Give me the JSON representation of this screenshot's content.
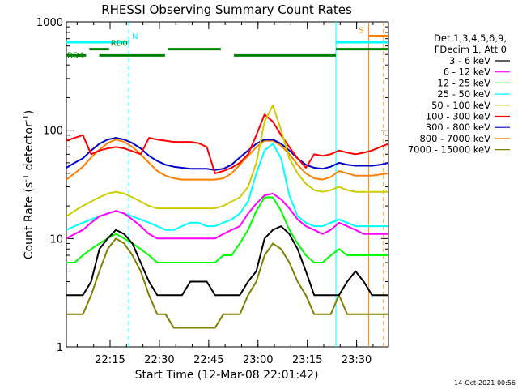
{
  "chart_data": {
    "type": "line",
    "title": "RHESSI Observing Summary Count Rates",
    "xlabel": "Start Time (12-Mar-08 22:01:42)",
    "ylabel_main": "Count Rate (s",
    "ylabel_sup1": "-1",
    "ylabel_mid": " detector",
    "ylabel_sup2": "-1",
    "ylabel_end": ")",
    "x_range_minutes": [
      0,
      98
    ],
    "y_scale": "log",
    "ylim": [
      1,
      1000
    ],
    "x_ticks": [
      {
        "label": "22:15",
        "minute": 13.3
      },
      {
        "label": "22:30",
        "minute": 28.3
      },
      {
        "label": "22:45",
        "minute": 43.3
      },
      {
        "label": "23:00",
        "minute": 58.3
      },
      {
        "label": "23:15",
        "minute": 73.3
      },
      {
        "label": "23:30",
        "minute": 88.3
      }
    ],
    "y_ticks": [
      {
        "label": "1",
        "value": 1
      },
      {
        "label": "10",
        "value": 10
      },
      {
        "label": "100",
        "value": 100
      },
      {
        "label": "1000",
        "value": 1000
      }
    ],
    "legend_header": [
      "Det 1,3,4,5,6,9,",
      "FDecim 1, Att 0"
    ],
    "series": [
      {
        "name": "3 - 6 keV",
        "color": "#000000",
        "values": [
          3,
          3,
          3,
          4,
          8,
          10,
          12,
          11,
          9,
          6,
          4,
          3,
          3,
          3,
          3,
          4,
          4,
          4,
          3,
          3,
          3,
          3,
          4,
          5,
          10,
          12,
          13,
          11,
          8,
          5,
          3,
          3,
          3,
          3,
          4,
          5,
          4,
          3,
          3,
          3
        ]
      },
      {
        "name": "6 - 12 keV",
        "color": "#ff00ff",
        "values": [
          10,
          11,
          12,
          14,
          16,
          17,
          18,
          17,
          15,
          13,
          11,
          10,
          10,
          10,
          10,
          10,
          10,
          10,
          10,
          11,
          12,
          13,
          17,
          21,
          25,
          26,
          23,
          19,
          15,
          13,
          12,
          11,
          12,
          14,
          13,
          12,
          11,
          11,
          11,
          11
        ]
      },
      {
        "name": "12 - 25 keV",
        "color": "#00ff00",
        "values": [
          6,
          6,
          7,
          8,
          9,
          10,
          11,
          10,
          9,
          8,
          7,
          6,
          6,
          6,
          6,
          6,
          6,
          6,
          6,
          7,
          7,
          9,
          12,
          18,
          24,
          24,
          18,
          12,
          9,
          7,
          6,
          6,
          7,
          8,
          7,
          7,
          7,
          7,
          7,
          7
        ]
      },
      {
        "name": "25 - 50 keV",
        "color": "#00ffff",
        "values": [
          12,
          13,
          14,
          15,
          16,
          17,
          18,
          17,
          16,
          15,
          14,
          13,
          12,
          12,
          13,
          14,
          14,
          13,
          13,
          14,
          15,
          17,
          22,
          40,
          65,
          75,
          55,
          25,
          16,
          14,
          13,
          13,
          14,
          15,
          14,
          13,
          13,
          13,
          13,
          13
        ]
      },
      {
        "name": "50 - 100 keV",
        "color": "#cccc00",
        "values": [
          16,
          18,
          20,
          22,
          24,
          26,
          27,
          26,
          24,
          22,
          20,
          19,
          19,
          19,
          19,
          19,
          19,
          19,
          19,
          20,
          22,
          24,
          30,
          50,
          120,
          170,
          100,
          55,
          40,
          32,
          28,
          27,
          28,
          30,
          28,
          27,
          27,
          27,
          27,
          27
        ]
      },
      {
        "name": "100 - 300 keV",
        "color": "#ff0000",
        "values": [
          80,
          85,
          90,
          60,
          65,
          68,
          70,
          68,
          64,
          60,
          85,
          82,
          80,
          78,
          78,
          78,
          76,
          70,
          40,
          42,
          45,
          50,
          60,
          90,
          140,
          120,
          90,
          70,
          55,
          45,
          60,
          58,
          60,
          65,
          62,
          60,
          62,
          65,
          70,
          75
        ]
      },
      {
        "name": "300 - 800 keV",
        "color": "#0000cc",
        "values": [
          45,
          50,
          55,
          65,
          75,
          82,
          85,
          82,
          76,
          68,
          58,
          52,
          48,
          46,
          45,
          44,
          44,
          44,
          43,
          44,
          48,
          56,
          65,
          75,
          82,
          82,
          75,
          65,
          55,
          48,
          45,
          44,
          46,
          50,
          48,
          47,
          47,
          47,
          48,
          50
        ]
      },
      {
        "name": "800 - 7000 keV",
        "color": "#ff8000",
        "values": [
          35,
          40,
          46,
          56,
          66,
          76,
          82,
          78,
          70,
          60,
          50,
          42,
          38,
          36,
          35,
          35,
          35,
          35,
          35,
          36,
          40,
          48,
          58,
          70,
          80,
          80,
          72,
          60,
          48,
          40,
          36,
          35,
          37,
          42,
          40,
          38,
          38,
          38,
          39,
          40
        ]
      },
      {
        "name": "7000 - 15000 keV",
        "color": "#808000",
        "values": [
          2,
          2,
          2,
          3,
          5,
          8,
          10,
          9,
          7,
          5,
          3,
          2,
          2,
          1.5,
          1.5,
          1.5,
          1.5,
          1.5,
          1.5,
          2,
          2,
          2,
          3,
          4,
          7,
          9,
          8,
          6,
          4,
          3,
          2,
          2,
          2,
          3,
          2,
          2,
          2,
          2,
          2,
          2
        ]
      }
    ],
    "state_bars": [
      {
        "label": "N",
        "color": "#00ffff",
        "value": 650,
        "segments": [
          [
            0,
            19
          ]
        ]
      },
      {
        "label": "",
        "color": "#00ffff",
        "value": 650,
        "segments": [
          [
            82,
            98
          ]
        ]
      },
      {
        "label": "S",
        "color": "#ff8000",
        "value": 740,
        "segments": [
          [
            92,
            98
          ]
        ]
      },
      {
        "label": "RD0",
        "color": "#008000",
        "value": 560,
        "segments": [
          [
            7,
            13
          ],
          [
            31,
            47
          ],
          [
            82,
            98
          ]
        ]
      },
      {
        "label": "RD4",
        "color": "#008000",
        "value": 490,
        "segments": [
          [
            0,
            6
          ],
          [
            10,
            30
          ],
          [
            51,
            82
          ]
        ]
      }
    ],
    "vlines": [
      {
        "color": "#00ffff",
        "dashed": true,
        "minute": 19
      },
      {
        "color": "#00ffff",
        "dashed": false,
        "minute": 82
      },
      {
        "color": "#ff8000",
        "dashed": false,
        "minute": 92
      },
      {
        "color": "#ff8000",
        "dashed": true,
        "minute": 96.5
      }
    ]
  },
  "footer": {
    "timestamp": "14-Oct-2021 00:56"
  }
}
